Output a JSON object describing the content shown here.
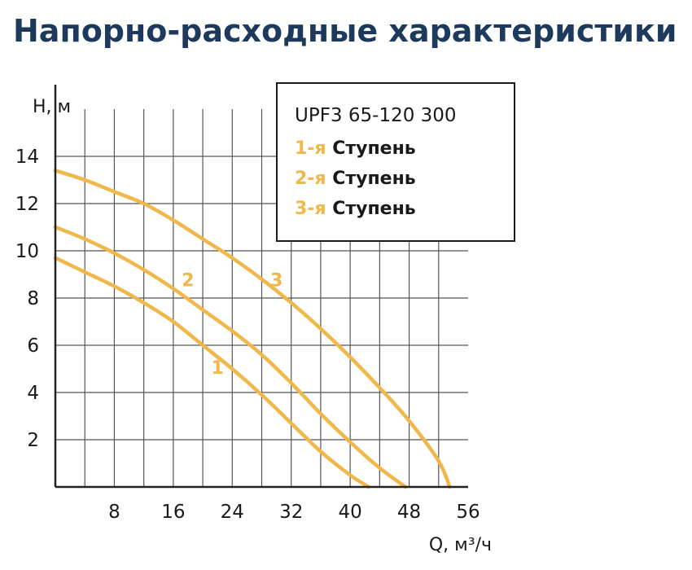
{
  "title": "Напорно-расходные  характеристики",
  "colors": {
    "curve": "#f0b84a",
    "grid": "#555555",
    "axis": "#222222",
    "title": "#1d3a5c"
  },
  "chart_data": {
    "type": "line",
    "xlabel": "Q, м³/ч",
    "ylabel": "H, м",
    "xlim": [
      0,
      56
    ],
    "ylim": [
      0,
      16
    ],
    "xticks": [
      8,
      16,
      24,
      32,
      40,
      48,
      56
    ],
    "yticks": [
      2,
      4,
      6,
      8,
      10,
      12,
      14
    ],
    "grid": true,
    "legend": {
      "placement": "top-right",
      "model": "UPF3 65-120 300",
      "items": [
        {
          "num": "1-я",
          "text": "Ступень"
        },
        {
          "num": "2-я",
          "text": "Ступень"
        },
        {
          "num": "3-я",
          "text": "Ступень"
        }
      ]
    },
    "series": [
      {
        "label": "1",
        "label_at": [
          22,
          4.8
        ],
        "x": [
          0,
          4,
          8,
          12,
          16,
          20,
          24,
          28,
          32,
          36,
          40,
          42.5
        ],
        "y": [
          9.7,
          9.1,
          8.5,
          7.8,
          7.0,
          6.0,
          5.0,
          3.9,
          2.7,
          1.5,
          0.5,
          0
        ]
      },
      {
        "label": "2",
        "label_at": [
          18,
          8.5
        ],
        "x": [
          0,
          4,
          8,
          12,
          16,
          20,
          24,
          28,
          32,
          36,
          40,
          44,
          47.5
        ],
        "y": [
          11.0,
          10.5,
          9.9,
          9.2,
          8.4,
          7.5,
          6.6,
          5.6,
          4.4,
          3.1,
          1.9,
          0.8,
          0
        ]
      },
      {
        "label": "3",
        "label_at": [
          30,
          8.5
        ],
        "x": [
          0,
          4,
          8,
          12,
          16,
          20,
          24,
          28,
          32,
          36,
          40,
          44,
          48,
          52,
          53.5
        ],
        "y": [
          13.4,
          13.0,
          12.5,
          12.0,
          11.3,
          10.5,
          9.7,
          8.8,
          7.8,
          6.7,
          5.5,
          4.2,
          2.8,
          1.1,
          0
        ]
      }
    ]
  }
}
